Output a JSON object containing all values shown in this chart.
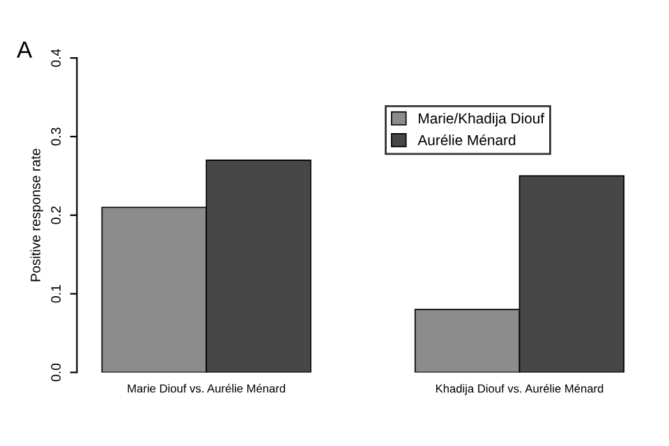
{
  "chart_data": {
    "type": "bar",
    "title": "A",
    "ylabel": "Positive response rate",
    "categories": [
      "Marie Diouf vs. Aurélie Ménard",
      "Khadija Diouf vs. Aurélie Ménard"
    ],
    "series": [
      {
        "name": "Marie/Khadija Diouf",
        "color": "#8c8c8c",
        "values": [
          0.21,
          0.08
        ]
      },
      {
        "name": "Aurélie Ménard",
        "color": "#474747",
        "values": [
          0.27,
          0.25
        ]
      }
    ],
    "ylim": [
      0,
      0.4
    ],
    "yticks": [
      {
        "value": 0,
        "label": "0.0"
      },
      0.1,
      0.2,
      0.3,
      0.4
    ],
    "grid": false,
    "legend": "top right"
  }
}
